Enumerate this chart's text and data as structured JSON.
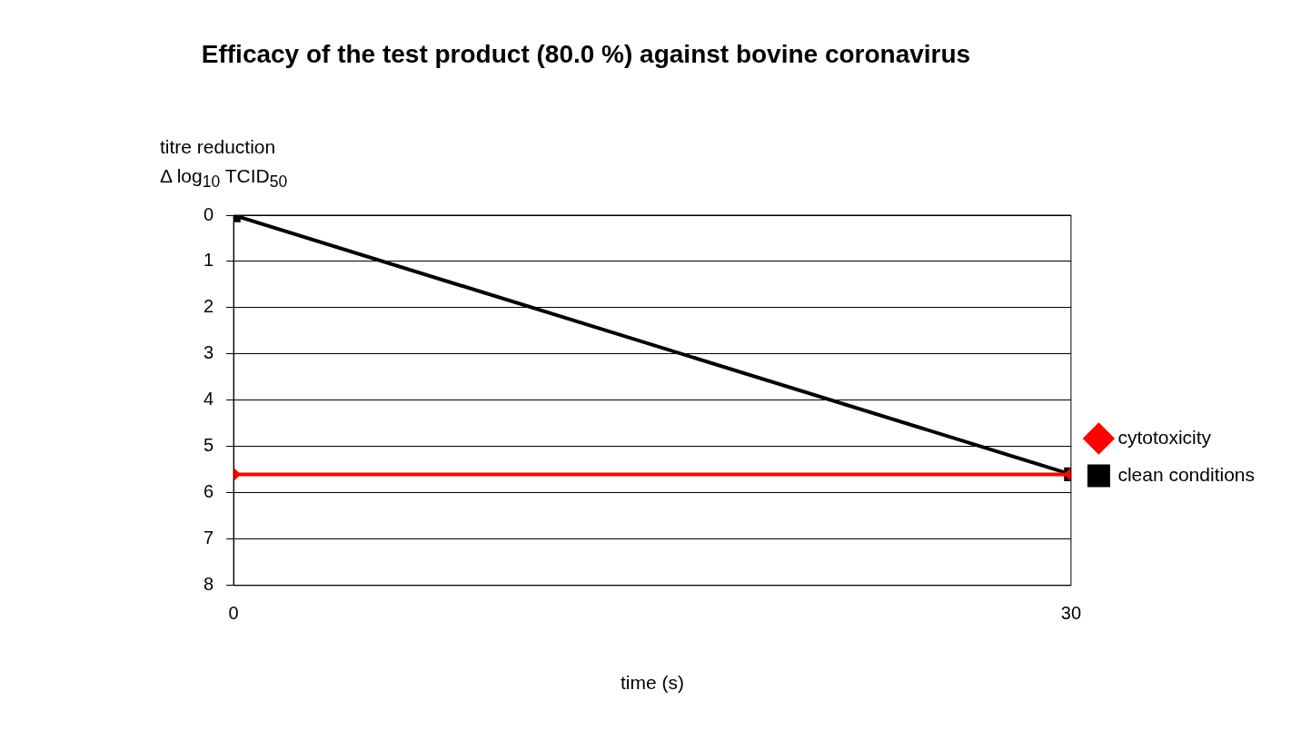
{
  "chart_data": {
    "type": "line",
    "title": "Efficacy of the test product (80.0 %) against bovine coronavirus",
    "xlabel": "time (s)",
    "ylabel": "titre reduction\nΔ log$_{10}$ TCID$_{50}$",
    "x": [
      0,
      30
    ],
    "xlim": [
      0,
      30
    ],
    "xticks": [
      0,
      30
    ],
    "ylim": [
      8,
      0
    ],
    "yticks": [
      0,
      1,
      2,
      3,
      4,
      5,
      6,
      7,
      8
    ],
    "grid": "y",
    "legend": "right",
    "series": [
      {
        "name": "clean conditions",
        "color": "#000000",
        "values": [
          0,
          5.6
        ],
        "marker": "square"
      },
      {
        "name": "cytotoxicity",
        "color": "#ff0000",
        "values": [
          5.6,
          5.6
        ],
        "marker": "diamond"
      }
    ]
  }
}
